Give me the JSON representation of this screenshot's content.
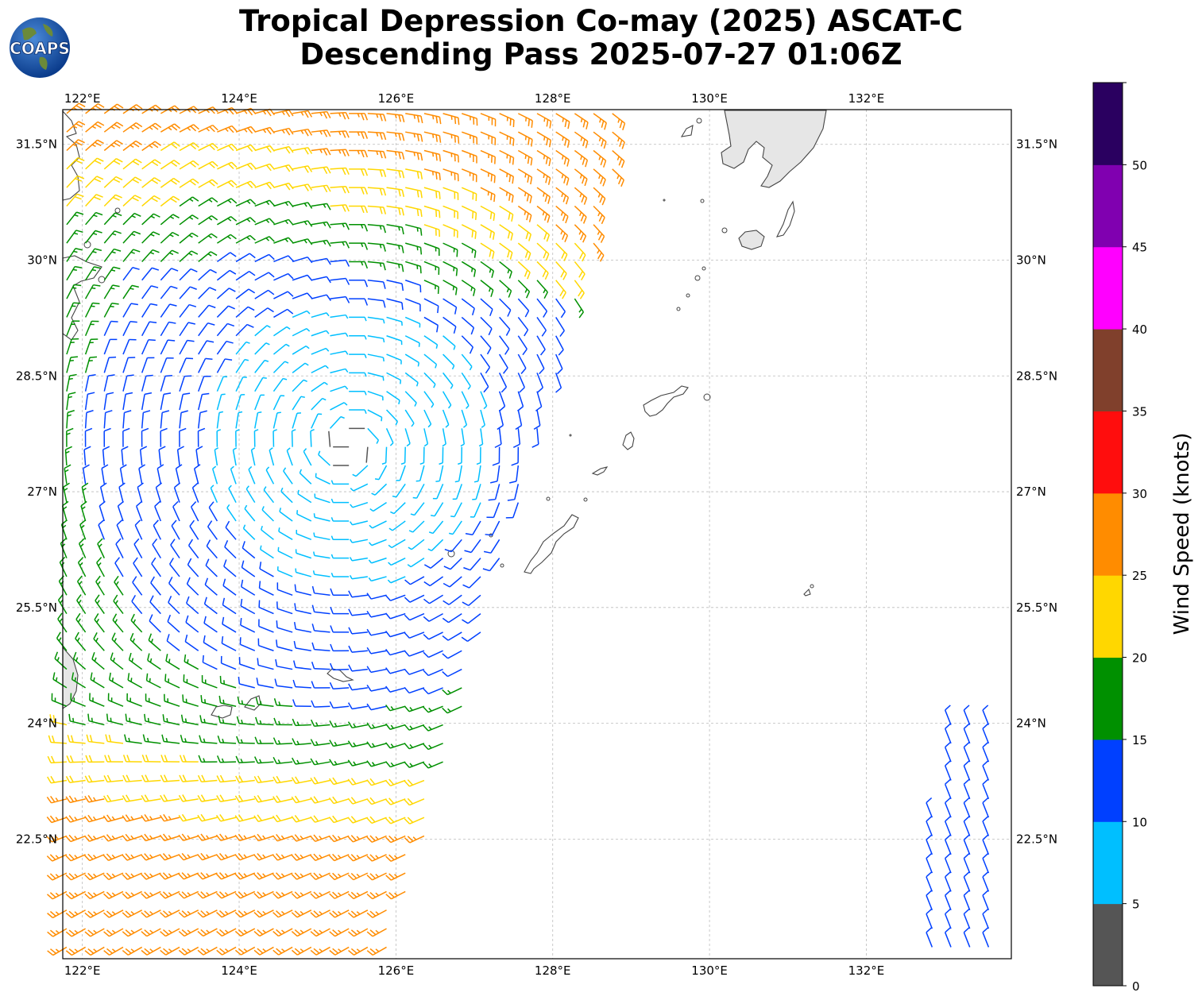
{
  "title": {
    "line1": "Tropical Depression Co-may (2025) ASCAT-C",
    "line2": "Descending Pass 2025-07-27 01:06Z"
  },
  "logo": {
    "text": "COAPS",
    "icon": "globe-logo"
  },
  "map": {
    "projection": "lat-lon",
    "lon_range": [
      121.75,
      133.85
    ],
    "lat_range": [
      20.95,
      31.95
    ],
    "lon_ticks": [
      {
        "value": 122,
        "label": "122°E"
      },
      {
        "value": 124,
        "label": "124°E"
      },
      {
        "value": 126,
        "label": "126°E"
      },
      {
        "value": 128,
        "label": "128°E"
      },
      {
        "value": 130,
        "label": "130°E"
      },
      {
        "value": 132,
        "label": "132°E"
      }
    ],
    "lat_ticks": [
      {
        "value": 22.5,
        "label": "22.5°N"
      },
      {
        "value": 24,
        "label": "24°N"
      },
      {
        "value": 25.5,
        "label": "25.5°N"
      },
      {
        "value": 27,
        "label": "27°N"
      },
      {
        "value": 28.5,
        "label": "28.5°N"
      },
      {
        "value": 30,
        "label": "30°N"
      },
      {
        "value": 31.5,
        "label": "31.5°N"
      }
    ],
    "gridlines": true,
    "colors": {
      "coast": "#444444",
      "grid": "#bbbbbb",
      "land_shade": "#e6e6e6"
    }
  },
  "colorbar": {
    "label": "Wind Speed (knots)",
    "bounds": [
      0,
      5,
      10,
      15,
      20,
      25,
      30,
      35,
      40,
      45,
      50,
      55
    ],
    "tick_labels": [
      "0",
      "5",
      "10",
      "15",
      "20",
      "25",
      "30",
      "35",
      "40",
      "45",
      "50"
    ],
    "colors": [
      "#555555",
      "#00bfff",
      "#0040ff",
      "#009000",
      "#ffd700",
      "#ff8c00",
      "#ff0d0d",
      "#80402c",
      "#ff00ff",
      "#8000b0",
      "#2a0060"
    ]
  }
}
